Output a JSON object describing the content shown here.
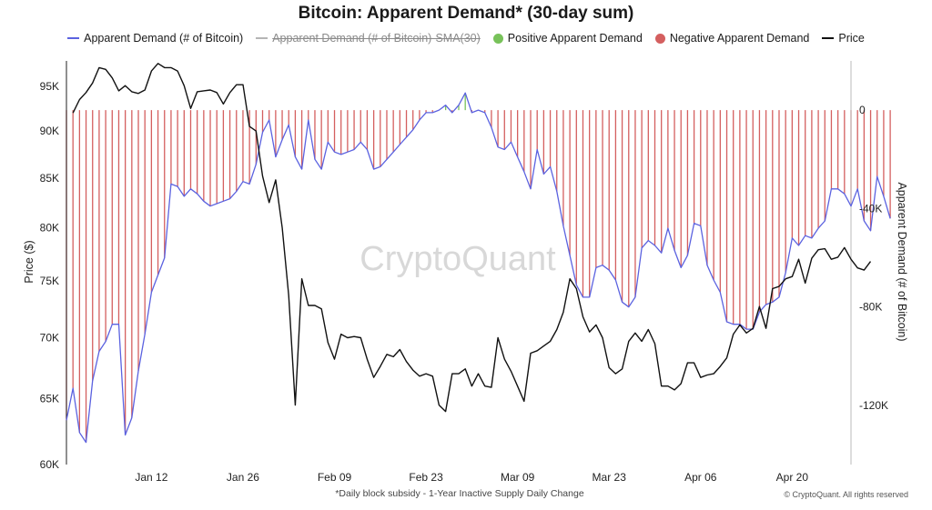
{
  "chart_data": {
    "type": "line",
    "title": "Bitcoin: Apparent Demand* (30-day sum)",
    "footnote": "*Daily block subsidy - 1-Year Inactive Supply Daily Change",
    "copyright": "© CryptoQuant. All rights reserved",
    "watermark": "CryptoQuant",
    "legend": {
      "demand": "Apparent Demand (# of Bitcoin)",
      "sma": "Apparent Demand (# of Bitcoin)-SMA(30)",
      "positive": "Positive Apparent Demand",
      "negative": "Negative Apparent Demand",
      "price": "Price"
    },
    "colors": {
      "demand": "#5b62e0",
      "sma": "#b5b5b5",
      "positive": "#78c25a",
      "negative": "#d45f5f",
      "price": "#111111"
    },
    "legend_position": "top-center",
    "grid": false,
    "x_range": [
      "2024-12-30",
      "2025-04-29"
    ],
    "x_ticks": [
      "Jan 12",
      "Jan 26",
      "Feb 09",
      "Feb 23",
      "Mar 09",
      "Mar 23",
      "Apr 06",
      "Apr 20"
    ],
    "x_tick_dates": [
      "2025-01-12",
      "2025-01-26",
      "2025-02-09",
      "2025-02-23",
      "2025-03-09",
      "2025-03-23",
      "2025-04-06",
      "2025-04-20"
    ],
    "y_left": {
      "label": "Price ($)",
      "scale": "log",
      "range": [
        60000,
        98000
      ],
      "ticks": [
        60000,
        65000,
        70000,
        75000,
        80000,
        85000,
        90000,
        95000
      ],
      "tick_labels": [
        "60K",
        "65K",
        "70K",
        "75K",
        "80K",
        "85K",
        "90K",
        "95K"
      ]
    },
    "y_right": {
      "label": "Apparent Demand (# of Bitcoin)",
      "range": [
        -144000,
        20000
      ],
      "ticks": [
        0,
        -40000,
        -80000,
        -120000
      ],
      "tick_labels": [
        "0",
        "-40K",
        "-80K",
        "-120K"
      ]
    },
    "series": [
      {
        "name": "Price",
        "axis": "left",
        "start": "2024-12-31",
        "step_days": 1,
        "values": [
          92000,
          93500,
          94300,
          95400,
          97200,
          97000,
          96000,
          94500,
          95100,
          94400,
          94200,
          94600,
          96800,
          97700,
          97200,
          97200,
          96800,
          95100,
          92500,
          94400,
          94500,
          94600,
          94300,
          93000,
          94300,
          95200,
          95200,
          90500,
          90000,
          85200,
          82500,
          84800,
          80000,
          73700,
          64500,
          75200,
          72800,
          72800,
          72500,
          69600,
          68200,
          70300,
          70000,
          70100,
          70000,
          68200,
          66700,
          67600,
          68600,
          68400,
          69000,
          68000,
          67300,
          66800,
          67000,
          66800,
          64500,
          64000,
          67000,
          67000,
          67400,
          66000,
          67000,
          66000,
          65900,
          70000,
          68200,
          67200,
          66000,
          64800,
          68700,
          68900,
          69300,
          69700,
          70700,
          72200,
          75200,
          74300,
          71800,
          70500,
          71100,
          70000,
          67500,
          67000,
          67400,
          69700,
          70400,
          69700,
          70700,
          69500,
          66000,
          66000,
          65700,
          66200,
          67900,
          67900,
          66700,
          66900,
          67000,
          67600,
          68300,
          70300,
          71100,
          70400,
          70800,
          72700,
          70800,
          74300,
          74500,
          75200,
          75400,
          77000,
          74800,
          77100,
          77900,
          78000,
          77000,
          77200,
          78100,
          77000,
          76200,
          76000,
          76800
        ]
      },
      {
        "name": "Apparent Demand (# of Bitcoin)",
        "axis": "right",
        "start": "2024-12-30",
        "step_days": 1,
        "values": [
          -126000,
          -113000,
          -131000,
          -135000,
          -110000,
          -98000,
          -94000,
          -87000,
          -87000,
          -132000,
          -125000,
          -106000,
          -91000,
          -74000,
          -67000,
          -60000,
          -30000,
          -31000,
          -35000,
          -32000,
          -34000,
          -37000,
          -39000,
          -38000,
          -37000,
          -36000,
          -33000,
          -29000,
          -30000,
          -22000,
          -9000,
          -4000,
          -19000,
          -12000,
          -6000,
          -19000,
          -24000,
          -4000,
          -20000,
          -24000,
          -13000,
          -17000,
          -18000,
          -17000,
          -16000,
          -13000,
          -16000,
          -24000,
          -23000,
          -20000,
          -17000,
          -14000,
          -11000,
          -8000,
          -4000,
          -1000,
          -1000,
          0,
          2000,
          -1000,
          2000,
          7000,
          -1000,
          0,
          -1000,
          -7000,
          -15000,
          -16000,
          -13000,
          -19000,
          -25000,
          -32000,
          -16000,
          -26000,
          -23000,
          -33000,
          -47000,
          -59000,
          -71000,
          -76000,
          -76000,
          -64000,
          -63000,
          -65000,
          -69000,
          -78000,
          -80000,
          -76000,
          -56000,
          -53000,
          -55000,
          -58000,
          -48000,
          -57000,
          -64000,
          -59000,
          -46000,
          -47000,
          -63000,
          -69000,
          -74000,
          -86000,
          -87000,
          -87000,
          -89000,
          -89000,
          -82000,
          -79000,
          -78000,
          -76000,
          -66000,
          -52000,
          -55000,
          -51000,
          -52000,
          -48000,
          -45000,
          -32000,
          -32000,
          -34000,
          -39000,
          -32000,
          -45000,
          -49000,
          -27000,
          -35000,
          -44000
        ]
      }
    ],
    "positive_periods": [
      "2025-02-22",
      "2025-02-25"
    ]
  }
}
